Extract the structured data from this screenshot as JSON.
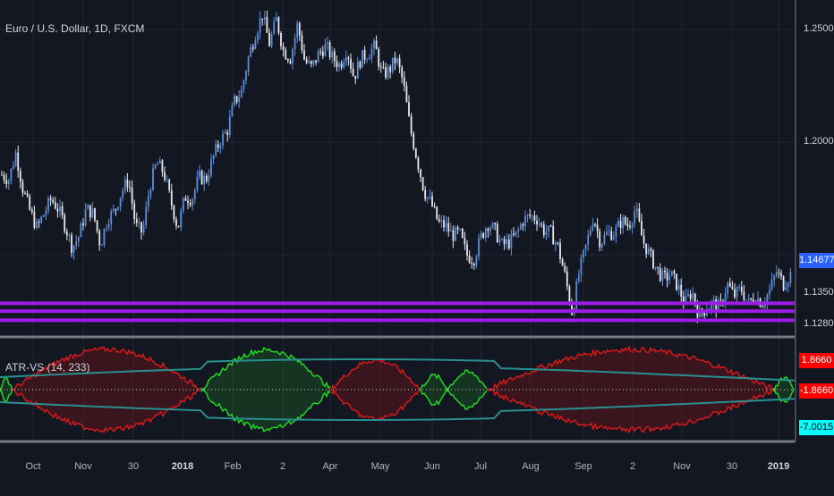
{
  "chart_data": [
    {
      "type": "line",
      "title": "Euro / U.S. Dollar, 1D, FXCM",
      "y_ticks": [
        "1.25000",
        "1.20000",
        "1.13500",
        "1.12800"
      ],
      "current_price": "1.14677",
      "x_tick_labels": [
        "Oct",
        "Nov",
        "30",
        "2018",
        "Feb",
        "2",
        "Apr",
        "May",
        "Jun",
        "Jul",
        "Aug",
        "Sep",
        "2",
        "Nov",
        "30",
        "2019"
      ],
      "ylim": [
        1.123,
        1.26
      ],
      "horizontal_levels": [
        1.135,
        1.1318,
        1.128
      ],
      "series": [
        {
          "values": [
            1.188,
            1.186,
            1.197,
            1.182,
            1.173,
            1.166,
            1.172,
            1.178,
            1.174,
            1.167,
            1.158,
            1.163,
            1.174,
            1.172,
            1.159,
            1.17,
            1.173,
            1.181,
            1.186,
            1.167,
            1.164,
            1.183,
            1.193,
            1.189,
            1.177,
            1.166,
            1.179,
            1.178,
            1.187,
            1.186,
            1.195,
            1.202,
            1.206,
            1.218,
            1.222,
            1.236,
            1.246,
            1.254,
            1.242,
            1.252,
            1.239,
            1.236,
            1.25,
            1.235,
            1.232,
            1.238,
            1.241,
            1.236,
            1.233,
            1.24,
            1.228,
            1.236,
            1.238,
            1.241,
            1.229,
            1.231,
            1.236,
            1.226,
            1.207,
            1.194,
            1.181,
            1.176,
            1.168,
            1.167,
            1.163,
            1.164,
            1.155,
            1.153,
            1.162,
            1.168,
            1.165,
            1.159,
            1.16,
            1.163,
            1.169,
            1.171,
            1.17,
            1.165,
            1.164,
            1.158,
            1.146,
            1.131,
            1.148,
            1.159,
            1.171,
            1.16,
            1.164,
            1.164,
            1.169,
            1.167,
            1.174,
            1.161,
            1.155,
            1.149,
            1.145,
            1.147,
            1.142,
            1.135,
            1.14,
            1.13,
            1.133,
            1.135,
            1.133,
            1.143,
            1.138,
            1.141,
            1.135,
            1.138,
            1.135,
            1.14,
            1.148,
            1.143,
            1.147
          ]
        }
      ]
    },
    {
      "type": "area",
      "title": "ATR-VS (14, 233)",
      "value_labels": [
        "1.8660",
        "-1.8660",
        "-7.0015"
      ]
    }
  ]
}
